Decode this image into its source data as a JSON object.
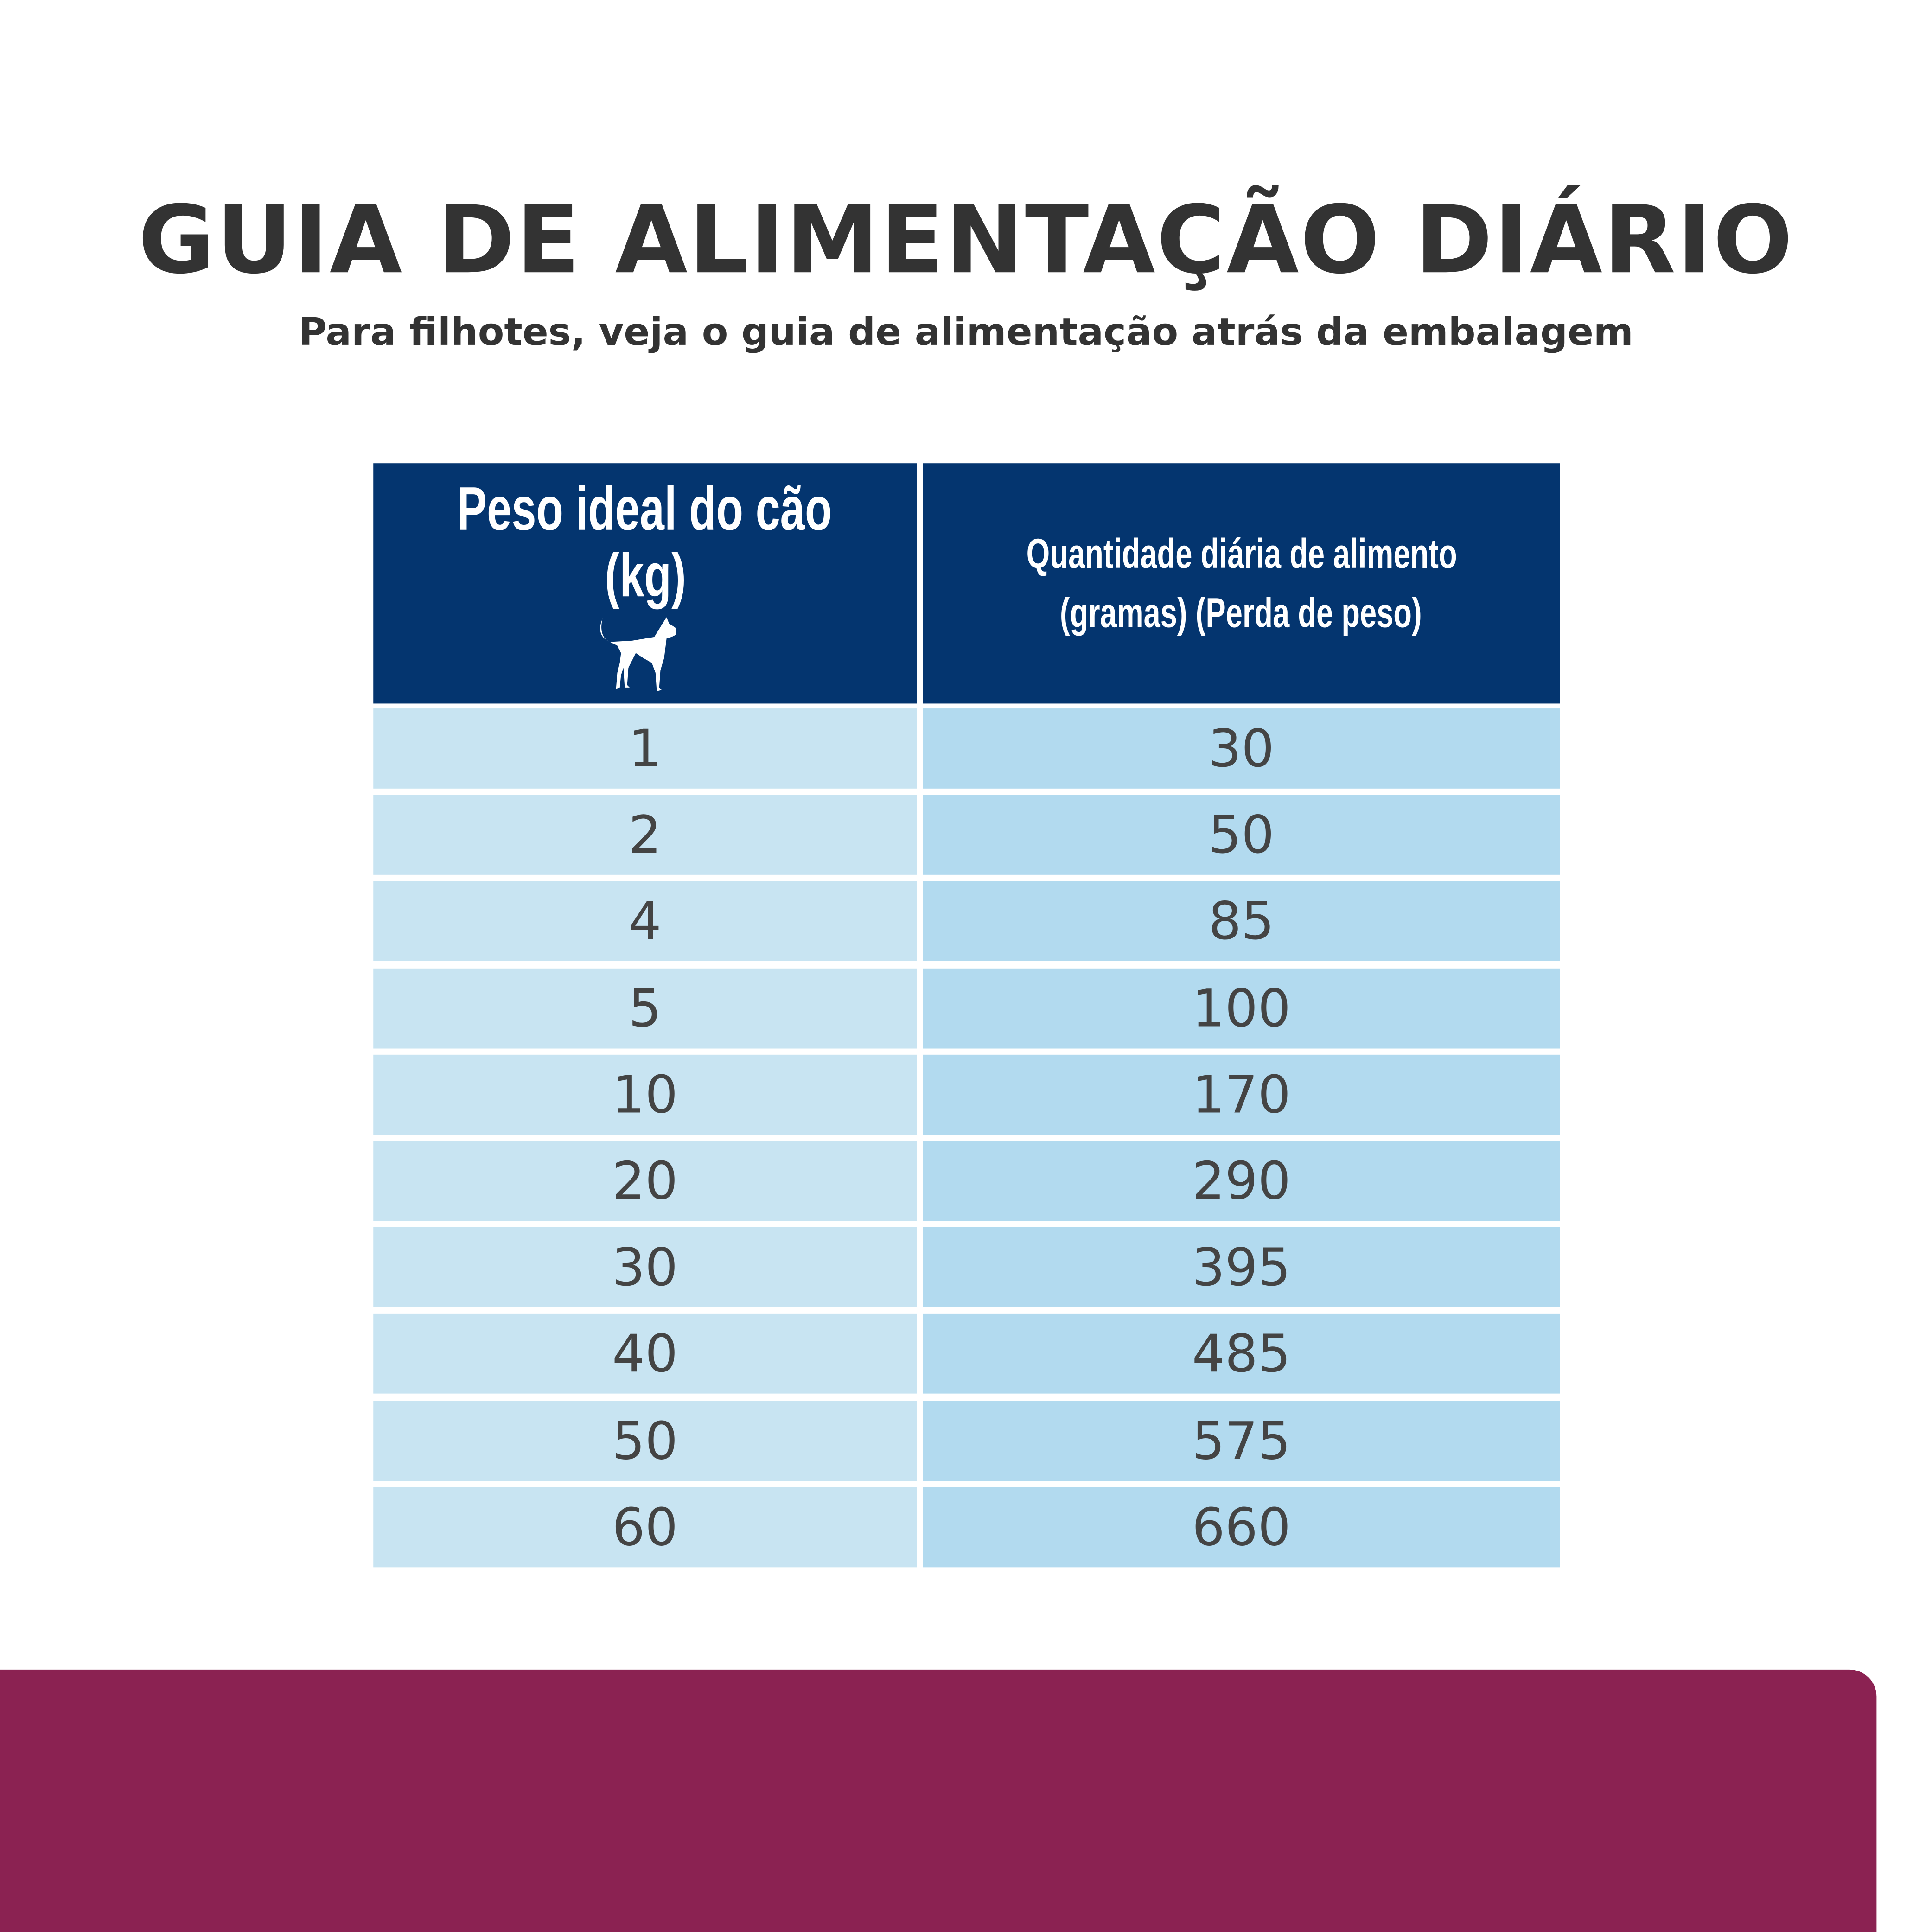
{
  "title": "GUIA DE ALIMENTAÇÃO DIÁRIO",
  "subtitle": "Para filhotes, veja o guia de alimentação atrás da embalagem",
  "table": {
    "header_weight_line1": "Peso ideal do cão",
    "header_weight_line2": "(kg)",
    "header_weight_icon": "dog-icon",
    "header_amount_line1": "Quantidade diária de alimento",
    "header_amount_line2": "(gramas) (Perda de peso)",
    "rows": [
      {
        "weight": "1",
        "amount": "30"
      },
      {
        "weight": "2",
        "amount": "50"
      },
      {
        "weight": "4",
        "amount": "85"
      },
      {
        "weight": "5",
        "amount": "100"
      },
      {
        "weight": "10",
        "amount": "170"
      },
      {
        "weight": "20",
        "amount": "290"
      },
      {
        "weight": "30",
        "amount": "395"
      },
      {
        "weight": "40",
        "amount": "485"
      },
      {
        "weight": "50",
        "amount": "575"
      },
      {
        "weight": "60",
        "amount": "660"
      }
    ]
  },
  "colors": {
    "header": "#04356f",
    "col1": "#c8e4f2",
    "col2": "#b2daef",
    "band": "#8b2252",
    "text": "#333333"
  }
}
